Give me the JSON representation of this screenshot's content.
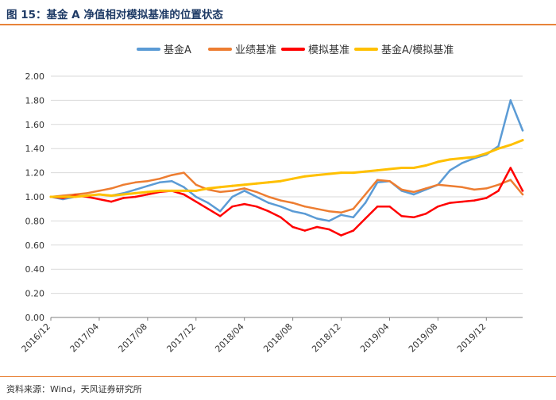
{
  "title": "图 15：基金 A 净值相对模拟基准的位置状态",
  "source": "资料来源：Wind，天风证券研究所",
  "colors": {
    "accent_rule": "#e8833a",
    "title_text": "#1f3b66",
    "axis_text": "#333333",
    "grid": "#d9d9d9"
  },
  "chart_data": {
    "type": "line",
    "title": "",
    "xlabel": "",
    "ylabel": "",
    "ylim": [
      0,
      2.0
    ],
    "yticks": [
      "0.00",
      "0.20",
      "0.40",
      "0.60",
      "0.80",
      "1.00",
      "1.20",
      "1.40",
      "1.60",
      "1.80",
      "2.00"
    ],
    "xticks": [
      "2016/12",
      "2017/04",
      "2017/08",
      "2017/12",
      "2018/04",
      "2018/08",
      "2018/12",
      "2019/04",
      "2019/08",
      "2019/12"
    ],
    "grid": "horizontal",
    "legend_position": "top-center",
    "x": [
      "2016/12",
      "2017/01",
      "2017/02",
      "2017/03",
      "2017/04",
      "2017/05",
      "2017/06",
      "2017/07",
      "2017/08",
      "2017/09",
      "2017/10",
      "2017/11",
      "2017/12",
      "2018/01",
      "2018/02",
      "2018/03",
      "2018/04",
      "2018/05",
      "2018/06",
      "2018/07",
      "2018/08",
      "2018/09",
      "2018/10",
      "2018/11",
      "2018/12",
      "2019/01",
      "2019/02",
      "2019/03",
      "2019/04",
      "2019/05",
      "2019/06",
      "2019/07",
      "2019/08",
      "2019/09",
      "2019/10",
      "2019/11",
      "2019/12",
      "2020/01",
      "2020/02",
      "2020/03"
    ],
    "series": [
      {
        "name": "基金A",
        "color": "#5b9bd5",
        "width": 2.5,
        "values": [
          1.0,
          0.98,
          1.0,
          1.01,
          1.02,
          1.01,
          1.03,
          1.06,
          1.09,
          1.12,
          1.13,
          1.08,
          1.0,
          0.95,
          0.88,
          1.0,
          1.05,
          1.0,
          0.95,
          0.92,
          0.88,
          0.86,
          0.82,
          0.8,
          0.85,
          0.83,
          0.95,
          1.12,
          1.13,
          1.05,
          1.02,
          1.06,
          1.1,
          1.22,
          1.28,
          1.32,
          1.35,
          1.42,
          1.8,
          1.55
        ]
      },
      {
        "name": "业绩基准",
        "color": "#ed7d31",
        "width": 2.5,
        "values": [
          1.0,
          1.01,
          1.02,
          1.03,
          1.05,
          1.07,
          1.1,
          1.12,
          1.13,
          1.15,
          1.18,
          1.2,
          1.1,
          1.06,
          1.04,
          1.05,
          1.07,
          1.04,
          1.0,
          0.97,
          0.95,
          0.92,
          0.9,
          0.88,
          0.87,
          0.9,
          1.02,
          1.14,
          1.13,
          1.06,
          1.04,
          1.07,
          1.1,
          1.09,
          1.08,
          1.06,
          1.07,
          1.1,
          1.14,
          1.02
        ]
      },
      {
        "name": "模拟基准",
        "color": "#ff0000",
        "width": 2.5,
        "values": [
          1.0,
          0.99,
          1.01,
          1.0,
          0.98,
          0.96,
          0.99,
          1.0,
          1.02,
          1.04,
          1.05,
          1.02,
          0.96,
          0.9,
          0.84,
          0.92,
          0.94,
          0.92,
          0.88,
          0.83,
          0.75,
          0.72,
          0.75,
          0.73,
          0.68,
          0.72,
          0.82,
          0.92,
          0.92,
          0.84,
          0.83,
          0.86,
          0.92,
          0.95,
          0.96,
          0.97,
          0.99,
          1.05,
          1.24,
          1.05
        ]
      },
      {
        "name": "基金A/模拟基准",
        "color": "#ffc000",
        "width": 3,
        "values": [
          1.0,
          1.0,
          1.0,
          1.01,
          1.02,
          1.01,
          1.02,
          1.03,
          1.04,
          1.05,
          1.05,
          1.05,
          1.05,
          1.07,
          1.08,
          1.09,
          1.1,
          1.11,
          1.12,
          1.13,
          1.15,
          1.17,
          1.18,
          1.19,
          1.2,
          1.2,
          1.21,
          1.22,
          1.23,
          1.24,
          1.24,
          1.26,
          1.29,
          1.31,
          1.32,
          1.33,
          1.36,
          1.4,
          1.43,
          1.47
        ]
      }
    ]
  }
}
